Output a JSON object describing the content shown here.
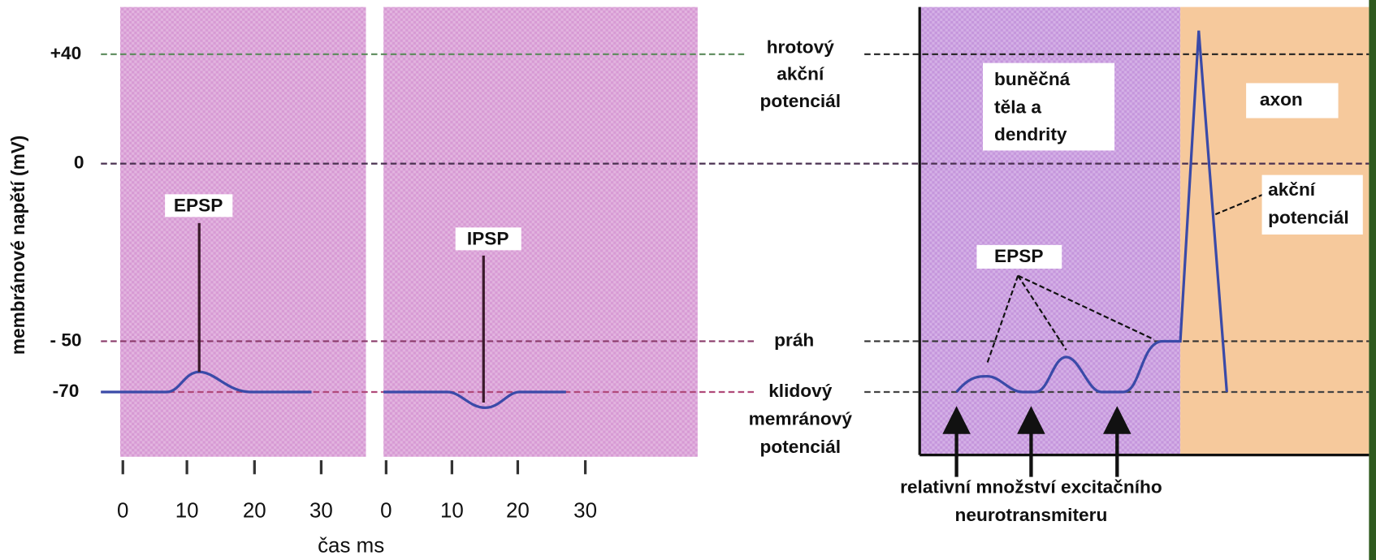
{
  "y_axis": {
    "label": "membránové napětí (mV)",
    "ticks": [
      "+40",
      "0",
      "- 50",
      "-70"
    ]
  },
  "x_axis": {
    "label": "čas ms",
    "ticks_left": [
      "0",
      "10",
      "20",
      "30"
    ],
    "ticks_middle": [
      "0",
      "10",
      "20",
      "30"
    ]
  },
  "labels": {
    "epsp_left": "EPSP",
    "ipsp": "IPSP",
    "epsp_right": "EPSP",
    "spike": [
      "hrotový",
      "akční",
      "potenciál"
    ],
    "threshold": "práh",
    "resting": [
      "klidový",
      "memránový",
      "potenciál"
    ],
    "soma": [
      "buněčná",
      "těla a",
      "dendrity"
    ],
    "axon": "axon",
    "action": [
      "akční",
      "potenciál"
    ],
    "transmitter": [
      "relativní množství excitačního",
      "neurotransmiteru"
    ]
  }
}
